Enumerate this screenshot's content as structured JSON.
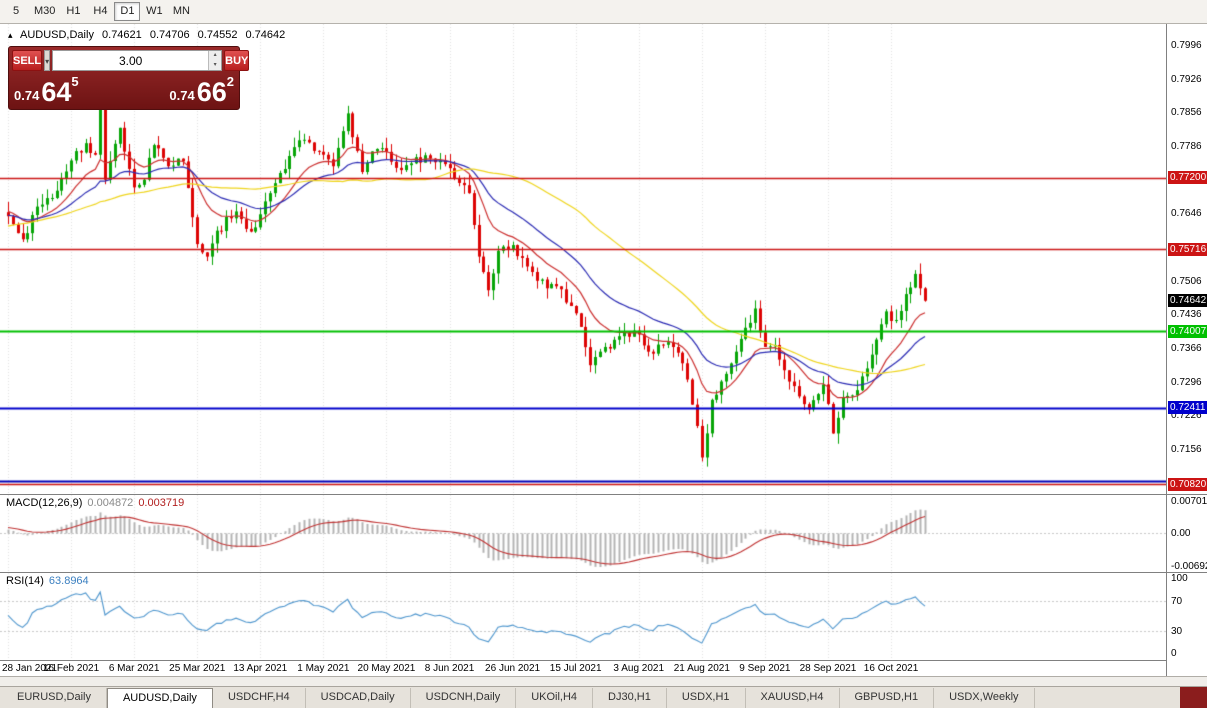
{
  "toolbar": {
    "timeframes": [
      {
        "label": "5",
        "active": false
      },
      {
        "label": "M30",
        "active": false
      },
      {
        "label": "H1",
        "active": false
      },
      {
        "label": "H4",
        "active": false
      },
      {
        "label": "D1",
        "active": true
      },
      {
        "label": "W1",
        "active": false
      },
      {
        "label": "MN",
        "active": false
      }
    ]
  },
  "chart_header": {
    "symbol_period": "AUDUSD,Daily",
    "open": "0.74621",
    "high": "0.74706",
    "low": "0.74552",
    "close": "0.74642"
  },
  "trade_panel": {
    "sell_label": "SELL",
    "buy_label": "BUY",
    "volume": "3.00",
    "sell_price": {
      "prefix": "0.74",
      "big": "64",
      "sup": "5"
    },
    "buy_price": {
      "prefix": "0.74",
      "big": "66",
      "sup": "2"
    }
  },
  "tabs": {
    "items": [
      "EURUSD,Daily",
      "AUDUSD,Daily",
      "USDCHF,H4",
      "USDCAD,Daily",
      "USDCNH,Daily",
      "UKOil,H4",
      "DJ30,H1",
      "USDX,H1",
      "XAUUSD,H4",
      "GBPUSD,H1",
      "USDX,Weekly"
    ],
    "active_index": 1
  },
  "chart_data": {
    "type": "candlestick",
    "title": "AUDUSD,Daily",
    "symbol": "AUDUSD",
    "period": "Daily",
    "bars": 190,
    "price_range": [
      0.7062,
      0.804
    ],
    "y_ticks": [
      "0.7996",
      "0.7926",
      "0.7856",
      "0.7786",
      "0.7646",
      "0.7506",
      "0.7436",
      "0.7366",
      "0.7296",
      "0.7226",
      "0.7156"
    ],
    "x_labels": [
      {
        "bar": 0,
        "text": "28 Jan 2021"
      },
      {
        "bar": 13,
        "text": "16 Feb 2021"
      },
      {
        "bar": 26,
        "text": "6 Mar 2021"
      },
      {
        "bar": 39,
        "text": "25 Mar 2021"
      },
      {
        "bar": 52,
        "text": "13 Apr 2021"
      },
      {
        "bar": 65,
        "text": "1 May 2021"
      },
      {
        "bar": 78,
        "text": "20 May 2021"
      },
      {
        "bar": 91,
        "text": "8 Jun 2021"
      },
      {
        "bar": 104,
        "text": "26 Jun 2021"
      },
      {
        "bar": 117,
        "text": "15 Jul 2021"
      },
      {
        "bar": 130,
        "text": "3 Aug 2021"
      },
      {
        "bar": 143,
        "text": "21 Aug 2021"
      },
      {
        "bar": 156,
        "text": "9 Sep 2021"
      },
      {
        "bar": 169,
        "text": "28 Sep 2021"
      },
      {
        "bar": 182,
        "text": "16 Oct 2021"
      }
    ],
    "close_keypoints": [
      [
        0,
        0.764
      ],
      [
        3,
        0.7592
      ],
      [
        6,
        0.766
      ],
      [
        9,
        0.7678
      ],
      [
        13,
        0.7756
      ],
      [
        16,
        0.7792
      ],
      [
        18,
        0.7768
      ],
      [
        19,
        0.7868
      ],
      [
        20,
        0.7716
      ],
      [
        23,
        0.7824
      ],
      [
        26,
        0.77
      ],
      [
        28,
        0.7716
      ],
      [
        30,
        0.7788
      ],
      [
        33,
        0.7744
      ],
      [
        36,
        0.7754
      ],
      [
        39,
        0.7582
      ],
      [
        41,
        0.7556
      ],
      [
        43,
        0.761
      ],
      [
        47,
        0.765
      ],
      [
        50,
        0.7608
      ],
      [
        52,
        0.7644
      ],
      [
        56,
        0.773
      ],
      [
        60,
        0.7798
      ],
      [
        63,
        0.7776
      ],
      [
        65,
        0.7768
      ],
      [
        67,
        0.7744
      ],
      [
        70,
        0.7854
      ],
      [
        73,
        0.7732
      ],
      [
        76,
        0.778
      ],
      [
        78,
        0.7774
      ],
      [
        81,
        0.7736
      ],
      [
        83,
        0.775
      ],
      [
        87,
        0.776
      ],
      [
        91,
        0.774
      ],
      [
        95,
        0.7688
      ],
      [
        97,
        0.7556
      ],
      [
        99,
        0.7486
      ],
      [
        101,
        0.7568
      ],
      [
        104,
        0.758
      ],
      [
        108,
        0.7524
      ],
      [
        111,
        0.749
      ],
      [
        114,
        0.7488
      ],
      [
        117,
        0.7438
      ],
      [
        120,
        0.733
      ],
      [
        123,
        0.7368
      ],
      [
        127,
        0.7398
      ],
      [
        130,
        0.7394
      ],
      [
        133,
        0.7354
      ],
      [
        136,
        0.7378
      ],
      [
        139,
        0.7334
      ],
      [
        141,
        0.7248
      ],
      [
        143,
        0.7138
      ],
      [
        145,
        0.7258
      ],
      [
        148,
        0.7312
      ],
      [
        152,
        0.7408
      ],
      [
        154,
        0.7448
      ],
      [
        156,
        0.7368
      ],
      [
        158,
        0.7372
      ],
      [
        161,
        0.7296
      ],
      [
        165,
        0.7238
      ],
      [
        168,
        0.729
      ],
      [
        170,
        0.7188
      ],
      [
        172,
        0.7262
      ],
      [
        175,
        0.7278
      ],
      [
        178,
        0.7352
      ],
      [
        181,
        0.7442
      ],
      [
        183,
        0.7424
      ],
      [
        185,
        0.7478
      ],
      [
        187,
        0.752
      ],
      [
        188,
        0.749
      ],
      [
        189,
        0.74642
      ]
    ],
    "prehistory": {
      "bars": 60,
      "keypoints": [
        [
          0,
          0.743
        ],
        [
          20,
          0.758
        ],
        [
          40,
          0.766
        ],
        [
          59,
          0.765
        ]
      ]
    },
    "ohlc_noise": {
      "seed": 11,
      "body_jitter": 0.0011,
      "wick": 0.003
    },
    "candle_colors": {
      "up": "#07A507",
      "down": "#DD0404"
    },
    "moving_averages": [
      {
        "type": "ema",
        "period": 12,
        "color": "#CC2F2F"
      },
      {
        "type": "ema",
        "period": 26,
        "color": "#2B2BB4"
      },
      {
        "type": "sma",
        "period": 50,
        "color": "#EFD51C"
      }
    ],
    "hlines": [
      {
        "price": 0.772,
        "color": "#CC1414",
        "badge": "0.77200",
        "width": 1.5
      },
      {
        "price": 0.75716,
        "color": "#CC1414",
        "badge": "0.75716",
        "width": 1.5
      },
      {
        "price": 0.74007,
        "color": "#00C000",
        "badge": "0.74007",
        "width": 2
      },
      {
        "price": 0.72411,
        "color": "#0000CC",
        "badge": "0.72411",
        "width": 2
      },
      {
        "price": 0.709,
        "color": "#0000B8",
        "badge": null,
        "width": 2
      },
      {
        "price": 0.7082,
        "color": "#CC1414",
        "badge": "0.70820",
        "width": 1.5
      }
    ],
    "current_price_badge": {
      "value": "0.74642",
      "price": 0.74642,
      "color": "#000000"
    },
    "macd": {
      "name": "MACD(12,26,9)",
      "values": [
        "0.004872",
        "0.003719"
      ],
      "fast": 12,
      "slow": 26,
      "signal": 9,
      "scale": [
        -0.008,
        0.0082
      ],
      "axis_labels": [
        "0.007015",
        "0.00",
        "-0.00692"
      ],
      "hist_color": "#B4B4B4",
      "signal_color": "#C03333"
    },
    "rsi": {
      "name": "RSI(14)",
      "value": "63.8964",
      "period": 14,
      "levels": [
        70,
        30
      ],
      "axis_labels": [
        "100",
        "70",
        "30",
        "0"
      ],
      "line_color": "#4E96CE"
    }
  }
}
